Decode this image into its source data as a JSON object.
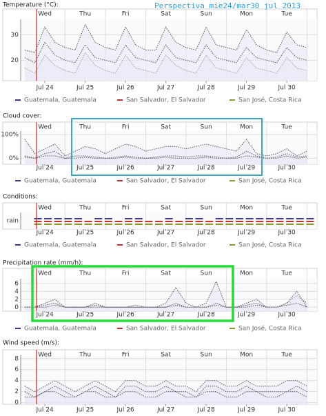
{
  "overlay_title": "Perspectiva mie24/mar30 jul 2013",
  "chart_data": [
    {
      "type": "line",
      "title": "Temperature (°C):",
      "day_labels": [
        "Wed",
        "Thu",
        "Fri",
        "Sat",
        "Sun",
        "Mon",
        "Tue"
      ],
      "xlim": [
        -0.1,
        7.25
      ],
      "xticks": [
        {
          "value": 0.5,
          "label": "Jul 24"
        },
        {
          "value": 1.5,
          "label": "Jul 25"
        },
        {
          "value": 2.5,
          "label": "Jul 26"
        },
        {
          "value": 3.5,
          "label": "Jul 27"
        },
        {
          "value": 4.5,
          "label": "Jul 28"
        },
        {
          "value": 5.5,
          "label": "Jul 29"
        },
        {
          "value": 6.5,
          "label": "Jul 30"
        }
      ],
      "ylim": [
        12,
        36
      ],
      "yticks": [
        20,
        30
      ],
      "grid": true,
      "x": [
        0,
        0.25,
        0.5,
        0.75,
        1,
        1.25,
        1.5,
        1.75,
        2,
        2.25,
        2.5,
        2.75,
        3,
        3.25,
        3.5,
        3.75,
        4,
        4.25,
        4.5,
        4.75,
        5,
        5.25,
        5.5,
        5.75,
        6,
        6.25,
        6.5,
        6.75,
        7
      ],
      "series": [
        {
          "name": "Guatemala, Guatemala",
          "color": "#3a3a8c",
          "values": [
            17,
            15,
            22,
            18,
            16,
            15,
            23,
            18,
            16,
            15,
            22,
            17,
            16,
            15,
            22,
            18,
            16,
            15,
            22,
            17,
            16,
            15,
            21,
            17,
            16,
            15,
            21,
            17,
            16
          ]
        },
        {
          "name": "San Salvador, El Salvador",
          "color": "#c03030",
          "values": [
            24,
            23,
            33,
            27,
            25,
            24,
            34,
            27,
            25,
            24,
            33,
            26,
            24,
            24,
            33,
            27,
            25,
            24,
            33,
            26,
            25,
            24,
            32,
            26,
            24,
            23,
            31,
            26,
            25
          ]
        },
        {
          "name": "San José, Costa Rica",
          "color": "#8a9a30",
          "values": [
            21,
            19,
            27,
            22,
            20,
            19,
            26,
            21,
            20,
            19,
            26,
            21,
            20,
            19,
            26,
            21,
            20,
            19,
            26,
            21,
            20,
            19,
            25,
            21,
            20,
            19,
            25,
            21,
            20
          ]
        }
      ]
    },
    {
      "type": "line",
      "title": "Cloud cover:",
      "day_labels": [
        "Wed",
        "Thu",
        "Fri",
        "Sat",
        "Sun",
        "Mon",
        "Tue"
      ],
      "xlim": [
        -0.1,
        7.25
      ],
      "xticks": [
        {
          "value": 0.5,
          "label": "Jul 24"
        },
        {
          "value": 1.5,
          "label": "Jul 25"
        },
        {
          "value": 2.5,
          "label": "Jul 26"
        },
        {
          "value": 3.5,
          "label": "Jul 27"
        },
        {
          "value": 4.5,
          "label": "Jul 28"
        },
        {
          "value": 5.5,
          "label": "Jul 29"
        },
        {
          "value": 6.5,
          "label": "Jul 30"
        }
      ],
      "ylim": [
        -25,
        115
      ],
      "yticks": [
        {
          "value": 0,
          "label": "0%"
        },
        {
          "value": 100,
          "label": "100%"
        }
      ],
      "grid": true,
      "x": [
        0,
        0.25,
        0.5,
        0.75,
        1,
        1.25,
        1.5,
        1.75,
        2,
        2.25,
        2.5,
        2.75,
        3,
        3.25,
        3.5,
        3.75,
        4,
        4.25,
        4.5,
        4.75,
        5,
        5.25,
        5.5,
        5.75,
        6,
        6.25,
        6.5,
        6.75,
        7
      ],
      "series": [
        {
          "name": "Guatemala, Guatemala",
          "color": "#3a3a8c",
          "values": [
            80,
            20,
            40,
            60,
            10,
            30,
            50,
            40,
            20,
            40,
            60,
            50,
            30,
            40,
            50,
            50,
            40,
            50,
            60,
            50,
            40,
            30,
            80,
            20,
            10,
            20,
            40,
            10,
            30
          ]
        },
        {
          "name": "San Salvador, El Salvador",
          "color": "#c03030",
          "values": [
            10,
            0,
            20,
            30,
            0,
            10,
            10,
            5,
            0,
            5,
            10,
            5,
            0,
            5,
            10,
            10,
            5,
            10,
            10,
            5,
            0,
            5,
            30,
            10,
            0,
            5,
            20,
            5,
            10
          ]
        },
        {
          "name": "San José, Costa Rica",
          "color": "#8a9a30",
          "values": [
            5,
            0,
            10,
            10,
            0,
            0,
            5,
            0,
            0,
            0,
            5,
            0,
            0,
            0,
            5,
            0,
            0,
            0,
            5,
            0,
            0,
            0,
            10,
            5,
            0,
            0,
            10,
            0,
            5
          ]
        }
      ]
    },
    {
      "type": "conditions",
      "title": "Conditions:",
      "day_labels": [
        "Wed",
        "Thu",
        "Fri",
        "Sat",
        "Sun",
        "Mon",
        "Tue"
      ],
      "xlim": [
        -0.1,
        7.25
      ],
      "xticks": [
        {
          "value": 0.5,
          "label": "Jul 24"
        },
        {
          "value": 1.5,
          "label": "Jul 25"
        },
        {
          "value": 2.5,
          "label": "Jul 26"
        },
        {
          "value": 3.5,
          "label": "Jul 27"
        },
        {
          "value": 4.5,
          "label": "Jul 28"
        },
        {
          "value": 5.5,
          "label": "Jul 29"
        },
        {
          "value": 6.5,
          "label": "Jul 30"
        }
      ],
      "ycategories": [
        "rain"
      ],
      "grid": true,
      "x": [
        0,
        0.25,
        0.5,
        0.75,
        1,
        1.25,
        1.5,
        1.75,
        2,
        2.25,
        2.5,
        2.75,
        3,
        3.25,
        3.5,
        3.75,
        4,
        4.25,
        4.5,
        4.75,
        5,
        5.25,
        5.5,
        5.75,
        6,
        6.25,
        6.5,
        6.75,
        7
      ],
      "series": [
        {
          "name": "Guatemala, Guatemala",
          "color": "#3a3a8c",
          "values": [
            null,
            "rain",
            "rain",
            "rain",
            "rain",
            "rain",
            null,
            "rain",
            "rain",
            null,
            "rain",
            "rain",
            null,
            null,
            "rain",
            null,
            "rain",
            "rain",
            null,
            "rain",
            "rain",
            "rain",
            "rain",
            "rain",
            "rain",
            "rain",
            "rain",
            "rain",
            "rain"
          ]
        },
        {
          "name": "San Salvador, El Salvador",
          "color": "#c03030",
          "values": [
            null,
            "rain",
            "rain",
            "rain",
            "rain",
            "rain",
            "rain",
            "rain",
            "rain",
            "rain",
            "rain",
            "rain",
            "rain",
            "rain",
            "rain",
            "rain",
            "rain",
            "rain",
            "rain",
            "rain",
            "rain",
            "rain",
            "rain",
            "rain",
            "rain",
            "rain",
            "rain",
            "rain",
            "rain"
          ]
        },
        {
          "name": "San José, Costa Rica",
          "color": "#8a9a30",
          "values": [
            null,
            "rain",
            "rain",
            "rain",
            "rain",
            "rain",
            "rain",
            "rain",
            "rain",
            "rain",
            "rain",
            "rain",
            "rain",
            "rain",
            "rain",
            "rain",
            "rain",
            "rain",
            "rain",
            "rain",
            "rain",
            "rain",
            "rain",
            "rain",
            "rain",
            "rain",
            "rain",
            "rain",
            "rain"
          ]
        }
      ]
    },
    {
      "type": "line",
      "title": "Precipitation rate (mm/h):",
      "day_labels": [
        "Wed",
        "Thu",
        "Fri",
        "Sat",
        "Sun",
        "Mon",
        "Tue"
      ],
      "xlim": [
        -0.1,
        7.25
      ],
      "xticks": [
        {
          "value": 0.5,
          "label": "Jul 24"
        },
        {
          "value": 1.5,
          "label": "Jul 25"
        },
        {
          "value": 2.5,
          "label": "Jul 26"
        },
        {
          "value": 3.5,
          "label": "Jul 27"
        },
        {
          "value": 4.5,
          "label": "Jul 28"
        },
        {
          "value": 5.5,
          "label": "Jul 29"
        },
        {
          "value": 6.5,
          "label": "Jul 30"
        }
      ],
      "ylim": [
        -1,
        7.2
      ],
      "yticks": [
        0,
        2,
        4,
        6
      ],
      "grid": true,
      "x": [
        0,
        0.25,
        0.5,
        0.75,
        1,
        1.25,
        1.5,
        1.75,
        2,
        2.25,
        2.5,
        2.75,
        3,
        3.25,
        3.5,
        3.75,
        4,
        4.25,
        4.5,
        4.75,
        5,
        5.25,
        5.5,
        5.75,
        6,
        6.25,
        6.5,
        6.75,
        7
      ],
      "series": [
        {
          "name": "Guatemala, Guatemala",
          "color": "#3a3a8c",
          "values": [
            0,
            0,
            1,
            2,
            0,
            0,
            0,
            1,
            0,
            0,
            0,
            0.5,
            0,
            0,
            1,
            5,
            1,
            0,
            1,
            6.5,
            0,
            0,
            1,
            2,
            0,
            0,
            1,
            3,
            1
          ]
        },
        {
          "name": "San Salvador, El Salvador",
          "color": "#c03030",
          "values": [
            0,
            0,
            0.5,
            1,
            0,
            0,
            0,
            0.5,
            0,
            0,
            0,
            0,
            0,
            0,
            0,
            1,
            0,
            0,
            0,
            1,
            0,
            0,
            0.5,
            1,
            0,
            0,
            1,
            4,
            0
          ]
        },
        {
          "name": "San José, Costa Rica",
          "color": "#8a9a30",
          "values": [
            0,
            0,
            0,
            0.5,
            0,
            0,
            0,
            0,
            0,
            0,
            0,
            0,
            0,
            0,
            0,
            0.5,
            0,
            0,
            0,
            0.5,
            0,
            0,
            0,
            0.5,
            0,
            0,
            0.5,
            1,
            0
          ]
        }
      ]
    },
    {
      "type": "line",
      "title": "Wind speed (m/s):",
      "day_labels": [
        "Wed",
        "Thu",
        "Fri",
        "Sat",
        "Sun",
        "Mon",
        "Tue"
      ],
      "xlim": [
        -0.1,
        7.25
      ],
      "xticks": [
        {
          "value": 0.5,
          "label": "Jul 24"
        },
        {
          "value": 1.5,
          "label": "Jul 25"
        },
        {
          "value": 2.5,
          "label": "Jul 26"
        },
        {
          "value": 3.5,
          "label": "Jul 27"
        },
        {
          "value": 4.5,
          "label": "Jul 28"
        },
        {
          "value": 5.5,
          "label": "Jul 29"
        },
        {
          "value": 6.5,
          "label": "Jul 30"
        }
      ],
      "ylim": [
        -0.3,
        8.6
      ],
      "yticks": [
        0,
        2,
        4,
        6,
        8
      ],
      "grid": true,
      "x": [
        0,
        0.25,
        0.5,
        0.75,
        1,
        1.25,
        1.5,
        1.75,
        2,
        2.25,
        2.5,
        2.75,
        3,
        3.25,
        3.5,
        3.75,
        4,
        4.25,
        4.5,
        4.75,
        5,
        5.25,
        5.5,
        5.75,
        6,
        6.25,
        6.5,
        6.75,
        7
      ],
      "series": [
        {
          "color": "#3a3a8c",
          "values": [
            3,
            2,
            3,
            4,
            3,
            2,
            3,
            4,
            3,
            2,
            4,
            4,
            3,
            3,
            4,
            3,
            3,
            2,
            4,
            4,
            3,
            3,
            4,
            3,
            3,
            3,
            4,
            4,
            3
          ]
        },
        {
          "color": "#c03030",
          "values": [
            2,
            1,
            2,
            3,
            2,
            1,
            2,
            3,
            2,
            1,
            3,
            3,
            2,
            2,
            3,
            2,
            2,
            1,
            3,
            3,
            2,
            2,
            3,
            2,
            2,
            2,
            2,
            3,
            2
          ]
        },
        {
          "color": "#8a9a30",
          "values": [
            1,
            1,
            2,
            2,
            1,
            1,
            2,
            2,
            1,
            1,
            2,
            2,
            1,
            1,
            2,
            2,
            1,
            1,
            2,
            2,
            1,
            1,
            2,
            2,
            1,
            1,
            2,
            2,
            1
          ]
        }
      ]
    }
  ]
}
